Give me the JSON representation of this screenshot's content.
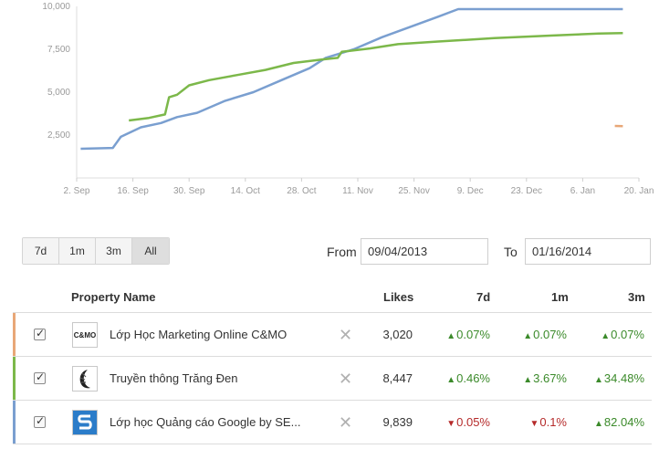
{
  "chart_data": {
    "type": "line",
    "y_ticks": [
      "10,000",
      "7,500",
      "5,000",
      "2,500"
    ],
    "x_ticks": [
      "2. Sep",
      "16. Sep",
      "30. Sep",
      "14. Oct",
      "28. Oct",
      "11. Nov",
      "25. Nov",
      "9. Dec",
      "23. Dec",
      "6. Jan",
      "20. Jan"
    ],
    "ylim": [
      0,
      10000
    ],
    "xlim": [
      "2013-09-02",
      "2014-01-20"
    ],
    "series": [
      {
        "color": "#7a9fd0",
        "points": [
          [
            "2013-09-03",
            1700
          ],
          [
            "2013-09-11",
            1750
          ],
          [
            "2013-09-13",
            2400
          ],
          [
            "2013-09-18",
            2950
          ],
          [
            "2013-09-23",
            3200
          ],
          [
            "2013-09-27",
            3550
          ],
          [
            "2013-10-02",
            3800
          ],
          [
            "2013-10-09",
            4500
          ],
          [
            "2013-10-16",
            5000
          ],
          [
            "2013-10-23",
            5700
          ],
          [
            "2013-10-30",
            6400
          ],
          [
            "2013-11-03",
            7000
          ],
          [
            "2013-11-10",
            7500
          ],
          [
            "2013-11-17",
            8200
          ],
          [
            "2013-11-24",
            8800
          ],
          [
            "2013-12-01",
            9400
          ],
          [
            "2013-12-06",
            9839
          ],
          [
            "2013-12-13",
            9839
          ],
          [
            "2013-12-27",
            9839
          ],
          [
            "2014-01-10",
            9839
          ],
          [
            "2014-01-16",
            9839
          ]
        ]
      },
      {
        "color": "#7cb84a",
        "points": [
          [
            "2013-09-15",
            3350
          ],
          [
            "2013-09-20",
            3500
          ],
          [
            "2013-09-24",
            3700
          ],
          [
            "2013-09-25",
            4700
          ],
          [
            "2013-09-27",
            4850
          ],
          [
            "2013-09-30",
            5400
          ],
          [
            "2013-10-05",
            5700
          ],
          [
            "2013-10-12",
            6000
          ],
          [
            "2013-10-19",
            6300
          ],
          [
            "2013-10-26",
            6700
          ],
          [
            "2013-11-02",
            6900
          ],
          [
            "2013-11-06",
            7000
          ],
          [
            "2013-11-07",
            7350
          ],
          [
            "2013-11-14",
            7550
          ],
          [
            "2013-11-21",
            7800
          ],
          [
            "2013-12-01",
            7950
          ],
          [
            "2013-12-15",
            8150
          ],
          [
            "2013-12-29",
            8300
          ],
          [
            "2014-01-10",
            8420
          ],
          [
            "2014-01-16",
            8447
          ]
        ]
      },
      {
        "color": "#e8a777",
        "points": [
          [
            "2014-01-14",
            3030
          ],
          [
            "2014-01-16",
            3020
          ]
        ]
      }
    ]
  },
  "controls": {
    "range_buttons": [
      "7d",
      "1m",
      "3m",
      "All"
    ],
    "active_range": "All",
    "from_label": "From",
    "from_value": "09/04/2013",
    "to_label": "To",
    "to_value": "01/16/2014"
  },
  "table": {
    "headers": {
      "name": "Property Name",
      "likes": "Likes",
      "d7": "7d",
      "m1": "1m",
      "m3": "3m"
    },
    "rows": [
      {
        "accent": "#e8a777",
        "name": "Lớp Học Marketing Online C&MO",
        "likes": "3,020",
        "d7": "0.07%",
        "d7_dir": "up",
        "m1": "0.07%",
        "m1_dir": "up",
        "m3": "0.07%",
        "m3_dir": "up",
        "logo": "c-mo-logo",
        "logo_text": "C&MO"
      },
      {
        "accent": "#7cb84a",
        "name": "Truyền thông Trăng Đen",
        "likes": "8,447",
        "d7": "0.46%",
        "d7_dir": "up",
        "m1": "3.67%",
        "m1_dir": "up",
        "m3": "34.48%",
        "m3_dir": "up",
        "logo": "moon-logo"
      },
      {
        "accent": "#7a9fd0",
        "name": "Lớp học Quảng cáo Google by SE...",
        "likes": "9,839",
        "d7": "0.05%",
        "d7_dir": "down",
        "m1": "0.1%",
        "m1_dir": "down",
        "m3": "82.04%",
        "m3_dir": "up",
        "logo": "s-logo"
      }
    ],
    "remove_icon": "close-icon"
  }
}
